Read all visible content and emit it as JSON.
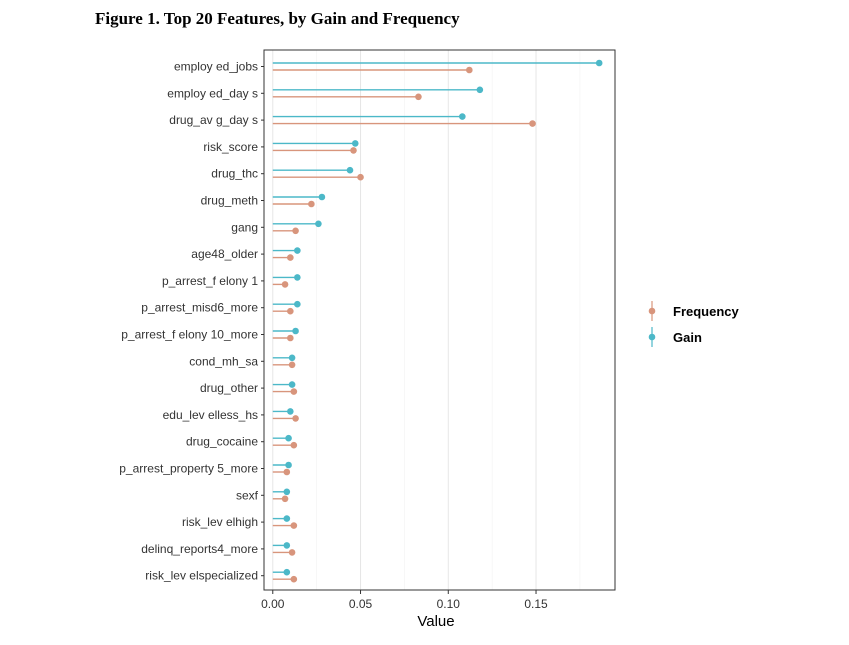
{
  "title": "Figure 1. Top 20 Features, by Gain and Frequency",
  "chart_data": {
    "type": "lollipop",
    "title": "Figure 1. Top 20 Features, by Gain and Frequency",
    "xlabel": "Value",
    "ylabel": "",
    "xlim": [
      -0.005,
      0.195
    ],
    "xticks": [
      0,
      0.05,
      0.1,
      0.15
    ],
    "xtick_labels": [
      "0.00",
      "0.05",
      "0.10",
      "0.15"
    ],
    "grid": "vertical",
    "legend_position": "right",
    "categories": [
      "employ ed_jobs",
      "employ ed_day s",
      "drug_av g_day s",
      "risk_score",
      "drug_thc",
      "drug_meth",
      "gang",
      "age48_older",
      "p_arrest_f elony 1",
      "p_arrest_misd6_more",
      "p_arrest_f elony 10_more",
      "cond_mh_sa",
      "drug_other",
      "edu_lev elless_hs",
      "drug_cocaine",
      "p_arrest_property 5_more",
      "sexf",
      "risk_lev elhigh",
      "delinq_reports4_more",
      "risk_lev elspecialized"
    ],
    "series": [
      {
        "name": "Frequency",
        "color": "#d8957c",
        "values": [
          0.112,
          0.083,
          0.148,
          0.046,
          0.05,
          0.022,
          0.013,
          0.01,
          0.007,
          0.01,
          0.01,
          0.011,
          0.012,
          0.013,
          0.012,
          0.008,
          0.007,
          0.012,
          0.011,
          0.012
        ]
      },
      {
        "name": "Gain",
        "color": "#4cb8c8",
        "values": [
          0.186,
          0.118,
          0.108,
          0.047,
          0.044,
          0.028,
          0.026,
          0.014,
          0.014,
          0.014,
          0.013,
          0.011,
          0.011,
          0.01,
          0.009,
          0.009,
          0.008,
          0.008,
          0.008,
          0.008
        ]
      }
    ],
    "legend": [
      "Frequency",
      "Gain"
    ]
  }
}
